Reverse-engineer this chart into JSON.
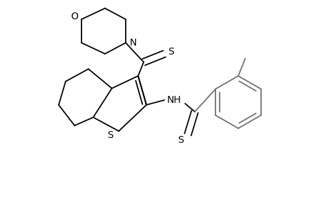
{
  "background_color": "#ffffff",
  "line_color": "#000000",
  "gray_line_color": "#707070",
  "figsize": [
    4.6,
    3.0
  ],
  "dpi": 100,
  "xlim": [
    0,
    4.6
  ],
  "ylim": [
    0,
    3.0
  ]
}
